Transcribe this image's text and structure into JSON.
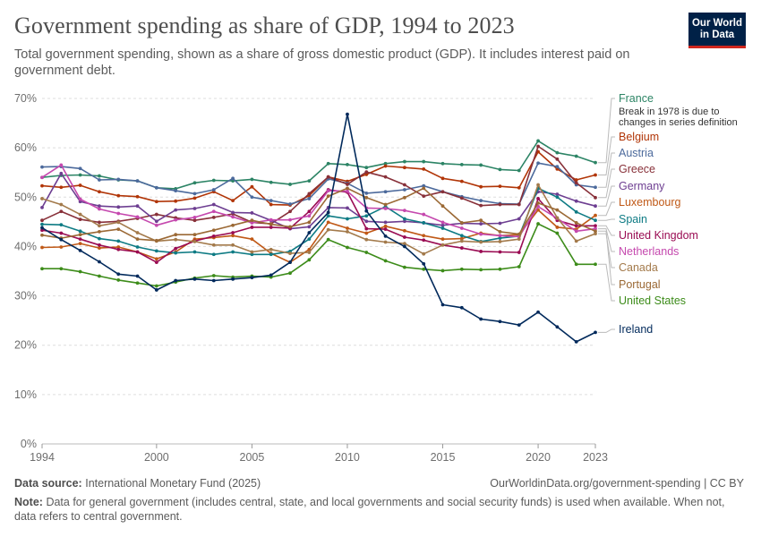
{
  "header": {
    "title": "Government spending as share of GDP, 1994 to 2023",
    "subtitle": "Total government spending, shown as a share of gross domestic product (GDP). It includes interest paid on government debt.",
    "logo_line1": "Our World",
    "logo_line2": "in Data"
  },
  "footer": {
    "source_label": "Data source:",
    "source_text": "International Monetary Fund (2025)",
    "url": "OurWorldinData.org/government-spending | CC BY",
    "note_label": "Note:",
    "note_text": "Data for general government (includes central, state, and local governments and social security funds) is used when available. When not, data refers to central government."
  },
  "chart_data": {
    "type": "line",
    "title": "Government spending as share of GDP, 1994 to 2023",
    "xlabel": "",
    "ylabel": "",
    "xlim": [
      1994,
      2023
    ],
    "ylim": [
      0,
      70
    ],
    "x_ticks": [
      1994,
      2000,
      2005,
      2010,
      2015,
      2020,
      2023
    ],
    "x_tick_labels": [
      "1994",
      "2000",
      "2005",
      "2010",
      "2015",
      "2020",
      "2023"
    ],
    "y_ticks": [
      0,
      10,
      20,
      30,
      40,
      50,
      60,
      70
    ],
    "y_tick_labels": [
      "0%",
      "10%",
      "20%",
      "30%",
      "40%",
      "50%",
      "60%",
      "70%"
    ],
    "grid": "horizontal dashed",
    "legend_placement": "right, labels at line ends",
    "x": [
      1994,
      1995,
      1996,
      1997,
      1998,
      1999,
      2000,
      2001,
      2002,
      2003,
      2004,
      2005,
      2006,
      2007,
      2008,
      2009,
      2010,
      2011,
      2012,
      2013,
      2014,
      2015,
      2016,
      2017,
      2018,
      2019,
      2020,
      2021,
      2022,
      2023
    ],
    "series": [
      {
        "name": "France",
        "color": "#2c8465",
        "values": [
          54.0,
          54.4,
          54.5,
          54.3,
          53.5,
          53.3,
          51.9,
          51.7,
          52.9,
          53.4,
          53.3,
          53.6,
          53.0,
          52.6,
          53.3,
          56.8,
          56.6,
          56.0,
          56.8,
          57.2,
          57.2,
          56.8,
          56.6,
          56.5,
          55.6,
          55.4,
          61.4,
          59.0,
          58.3,
          57.0
        ]
      },
      {
        "name": "Belgium",
        "color": "#b13507",
        "values": [
          52.3,
          52.0,
          52.4,
          51.1,
          50.3,
          50.1,
          49.1,
          49.2,
          49.8,
          51.1,
          49.3,
          52.1,
          48.5,
          48.4,
          50.3,
          54.1,
          53.2,
          54.6,
          56.3,
          56.0,
          55.7,
          53.8,
          53.2,
          52.1,
          52.2,
          51.9,
          59.2,
          55.7,
          53.5,
          54.5
        ]
      },
      {
        "name": "Austria",
        "color": "#4c6a9c",
        "values": [
          56.1,
          56.2,
          55.8,
          53.5,
          53.6,
          53.3,
          51.9,
          51.3,
          50.7,
          51.5,
          53.8,
          50.0,
          49.3,
          48.6,
          49.7,
          53.7,
          52.8,
          50.8,
          51.1,
          51.5,
          52.3,
          51.1,
          50.1,
          49.3,
          48.7,
          48.6,
          56.9,
          56.2,
          52.5,
          52.0
        ]
      },
      {
        "name": "Greece",
        "color": "#883039",
        "values": [
          45.3,
          47.1,
          45.5,
          44.9,
          45.1,
          45.7,
          46.5,
          45.8,
          45.3,
          45.9,
          46.6,
          44.9,
          44.6,
          47.1,
          50.7,
          54.1,
          52.6,
          55.1,
          54.1,
          52.5,
          50.2,
          51.1,
          49.8,
          48.3,
          48.5,
          48.5,
          60.3,
          57.7,
          52.9,
          49.9
        ]
      },
      {
        "name": "Germany",
        "color": "#6d3e91",
        "values": [
          47.9,
          54.8,
          49.1,
          48.2,
          48.0,
          48.2,
          45.1,
          47.4,
          47.7,
          48.5,
          46.9,
          46.8,
          45.3,
          43.6,
          44.0,
          47.9,
          47.8,
          45.1,
          44.9,
          45.1,
          44.8,
          44.3,
          44.7,
          44.6,
          44.7,
          45.6,
          51.1,
          50.6,
          49.2,
          48.2
        ]
      },
      {
        "name": "Luxembourg",
        "color": "#c05917",
        "values": [
          39.8,
          39.9,
          40.6,
          39.7,
          39.9,
          38.9,
          37.5,
          38.9,
          41.5,
          41.8,
          42.2,
          41.5,
          38.6,
          36.8,
          39.4,
          44.9,
          43.7,
          42.7,
          44.1,
          43.2,
          42.2,
          41.5,
          41.6,
          42.7,
          42.2,
          42.4,
          47.4,
          43.9,
          43.5,
          46.3
        ]
      },
      {
        "name": "Spain",
        "color": "#0e7b84",
        "values": [
          44.5,
          44.4,
          43.1,
          41.6,
          41.1,
          39.9,
          39.1,
          38.7,
          38.9,
          38.4,
          38.9,
          38.4,
          38.4,
          39.0,
          41.5,
          46.2,
          45.6,
          46.2,
          48.1,
          45.6,
          44.8,
          43.7,
          42.2,
          41.0,
          41.7,
          42.1,
          51.8,
          50.0,
          47.0,
          45.3
        ]
      },
      {
        "name": "United Kingdom",
        "color": "#9a0c53",
        "values": [
          43.3,
          42.7,
          41.5,
          40.3,
          39.4,
          38.9,
          36.8,
          39.6,
          41.1,
          42.1,
          42.8,
          43.9,
          43.9,
          43.7,
          47.1,
          51.5,
          51.0,
          43.6,
          43.5,
          41.9,
          41.3,
          40.3,
          39.7,
          39.0,
          38.9,
          38.8,
          49.7,
          45.3,
          44.2,
          44.2
        ]
      },
      {
        "name": "Netherlands",
        "color": "#c548ae",
        "values": [
          54.0,
          56.5,
          49.6,
          47.6,
          46.7,
          46.0,
          44.3,
          45.4,
          45.9,
          47.1,
          46.0,
          44.8,
          45.4,
          45.4,
          46.2,
          51.3,
          51.2,
          47.8,
          47.7,
          47.3,
          46.5,
          44.9,
          43.7,
          42.5,
          42.2,
          42.0,
          48.1,
          45.7,
          43.1,
          43.6
        ]
      },
      {
        "name": "Canada",
        "color": "#a37a4b",
        "values": [
          49.7,
          48.5,
          46.5,
          44.2,
          44.9,
          42.8,
          41.1,
          41.4,
          41.0,
          40.3,
          40.3,
          38.9,
          39.4,
          38.6,
          38.8,
          43.4,
          43.0,
          41.4,
          40.9,
          40.6,
          38.5,
          40.3,
          41.1,
          40.9,
          41.0,
          41.5,
          52.5,
          45.8,
          41.1,
          42.6
        ]
      },
      {
        "name": "Portugal",
        "color": "#9b6935",
        "values": [
          42.3,
          41.7,
          42.4,
          43.0,
          43.5,
          41.5,
          41.2,
          42.4,
          42.4,
          43.3,
          44.3,
          45.3,
          44.5,
          44.0,
          44.9,
          50.2,
          51.8,
          49.9,
          48.5,
          49.9,
          51.8,
          48.2,
          44.8,
          45.3,
          43.0,
          42.5,
          48.8,
          47.4,
          44.8,
          43.1
        ]
      },
      {
        "name": "United States",
        "color": "#3d8c1a",
        "values": [
          35.5,
          35.5,
          34.9,
          34.0,
          33.2,
          32.6,
          32.0,
          32.8,
          33.6,
          34.1,
          33.8,
          34.0,
          33.8,
          34.6,
          37.3,
          41.4,
          39.8,
          38.8,
          37.1,
          35.8,
          35.4,
          35.1,
          35.4,
          35.3,
          35.4,
          35.9,
          44.6,
          42.7,
          36.4,
          36.4
        ]
      },
      {
        "name": "Ireland",
        "color": "#00295b",
        "values": [
          43.8,
          41.4,
          39.2,
          36.9,
          34.4,
          34.0,
          31.2,
          33.1,
          33.4,
          33.1,
          33.4,
          33.7,
          34.2,
          36.8,
          42.8,
          46.9,
          66.8,
          47.2,
          42.1,
          40.0,
          36.5,
          28.2,
          27.6,
          25.3,
          24.8,
          24.1,
          26.7,
          23.7,
          20.7,
          22.6
        ]
      }
    ],
    "end_labels": [
      {
        "series": "France",
        "text": "France"
      },
      {
        "series": "France",
        "text": "Break in 1978 is due to",
        "kind": "annotation"
      },
      {
        "series": "France",
        "text": "changes in series definition",
        "kind": "annotation"
      },
      {
        "series": "Belgium",
        "text": "Belgium"
      },
      {
        "series": "Austria",
        "text": "Austria"
      },
      {
        "series": "Greece",
        "text": "Greece"
      },
      {
        "series": "Germany",
        "text": "Germany"
      },
      {
        "series": "Luxembourg",
        "text": "Luxembourg"
      },
      {
        "series": "Spain",
        "text": "Spain"
      },
      {
        "series": "United Kingdom",
        "text": "United Kingdom"
      },
      {
        "series": "Netherlands",
        "text": "Netherlands"
      },
      {
        "series": "Canada",
        "text": "Canada"
      },
      {
        "series": "Portugal",
        "text": "Portugal"
      },
      {
        "series": "United States",
        "text": "United States"
      },
      {
        "series": "Ireland",
        "text": "Ireland"
      }
    ]
  }
}
